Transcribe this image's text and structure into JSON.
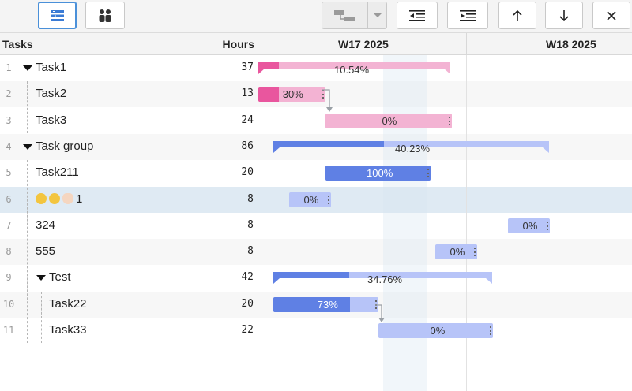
{
  "toolbar": {
    "buttons": [
      {
        "icon": "task-list-icon",
        "active": true
      },
      {
        "icon": "resources-icon",
        "active": false
      },
      {
        "icon": "link-tasks-icon",
        "disabled": true
      },
      {
        "icon": "link-dropdown-icon",
        "disabled": true
      },
      {
        "icon": "outdent-icon"
      },
      {
        "icon": "indent-icon"
      },
      {
        "icon": "move-up-icon"
      },
      {
        "icon": "move-down-icon"
      },
      {
        "icon": "close-icon"
      }
    ]
  },
  "grid": {
    "col_tasks": "Tasks",
    "col_hours": "Hours"
  },
  "timeline": {
    "weeks": [
      "W17 2025",
      "W18 2025"
    ]
  },
  "rows": [
    {
      "num": "1",
      "name": "Task1",
      "hours": "37",
      "level": 0,
      "caret": true
    },
    {
      "num": "2",
      "name": "Task2",
      "hours": "13",
      "level": 1
    },
    {
      "num": "3",
      "name": "Task3",
      "hours": "24",
      "level": 1
    },
    {
      "num": "4",
      "name": "Task group",
      "hours": "86",
      "level": 0,
      "caret": true
    },
    {
      "num": "5",
      "name": "Task211",
      "hours": "20",
      "level": 1
    },
    {
      "num": "6",
      "name": "1",
      "hours": "8",
      "level": 1,
      "emojis": [
        "grinning-face-icon",
        "grinning-face-icon",
        "waving-hand-icon"
      ],
      "selected": true
    },
    {
      "num": "7",
      "name": "324",
      "hours": "8",
      "level": 1
    },
    {
      "num": "8",
      "name": "555",
      "hours": "8",
      "level": 1
    },
    {
      "num": "9",
      "name": "Test",
      "hours": "42",
      "level": 1,
      "caret": true
    },
    {
      "num": "10",
      "name": "Task22",
      "hours": "20",
      "level": 2
    },
    {
      "num": "11",
      "name": "Task33",
      "hours": "22",
      "level": 2
    }
  ],
  "bars": [
    {
      "row": 0,
      "kind": "summary",
      "color": "pink",
      "progress": 10.54,
      "label": "10.54%"
    },
    {
      "row": 1,
      "kind": "task",
      "color": "pink",
      "progress": 30,
      "label": "30%"
    },
    {
      "row": 2,
      "kind": "task",
      "color": "pink",
      "progress": 0,
      "label": "0%"
    },
    {
      "row": 3,
      "kind": "summary",
      "color": "blue",
      "progress": 40.23,
      "label": "40.23%"
    },
    {
      "row": 4,
      "kind": "task",
      "color": "blue",
      "progress": 100,
      "label": "100%"
    },
    {
      "row": 5,
      "kind": "task",
      "color": "blue",
      "progress": 0,
      "label": "0%"
    },
    {
      "row": 6,
      "kind": "task",
      "color": "blue",
      "progress": 0,
      "label": "0%"
    },
    {
      "row": 7,
      "kind": "task",
      "color": "blue",
      "progress": 0,
      "label": "0%"
    },
    {
      "row": 8,
      "kind": "summary",
      "color": "blue",
      "progress": 34.76,
      "label": "34.76%"
    },
    {
      "row": 9,
      "kind": "task",
      "color": "blue",
      "progress": 73,
      "label": "73%"
    },
    {
      "row": 10,
      "kind": "task",
      "color": "blue",
      "progress": 0,
      "label": "0%"
    }
  ],
  "colors": {
    "pink_task": "#f3b3d3",
    "pink_progress": "#e9569e",
    "blue_task": "#b7c4f8",
    "blue_progress": "#5f80e4",
    "selected_row": "#dfeaf3",
    "accent": "#4a90d9"
  }
}
